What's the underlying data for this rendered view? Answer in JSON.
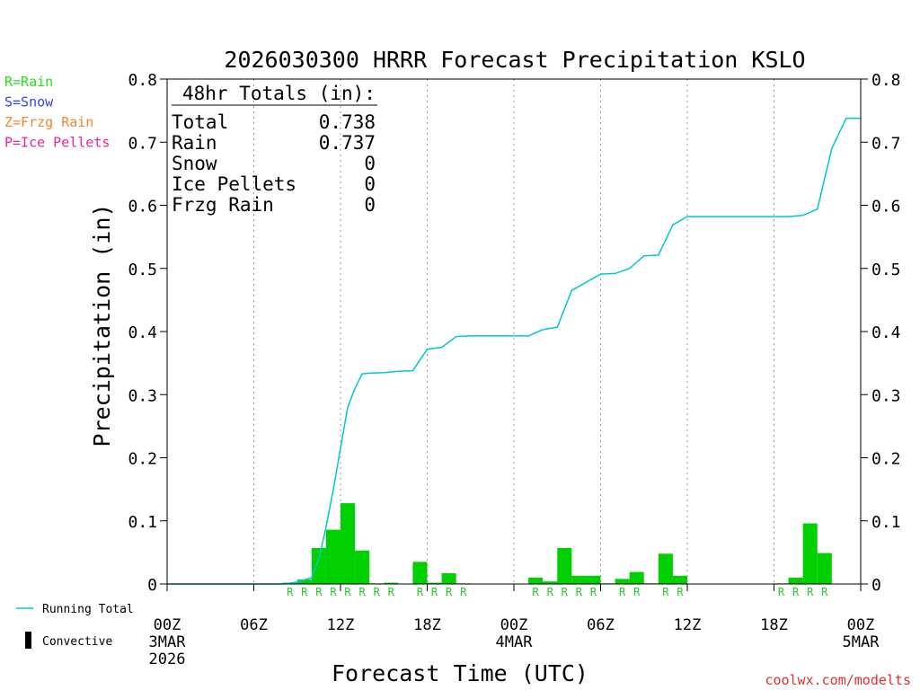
{
  "chart_data": {
    "type": "bar",
    "title": "2026030300 HRRR Forecast Precipitation KSLO",
    "ylabel": "Precipitation (in)",
    "xlabel": "Forecast Time (UTC)",
    "ylim": [
      0,
      0.8
    ],
    "xlim_hours": [
      0,
      48
    ],
    "y_ticks": [
      0,
      0.1,
      0.2,
      0.3,
      0.4,
      0.5,
      0.6,
      0.7,
      0.8
    ],
    "y_tick_labels": [
      "0",
      "0.1",
      "0.2",
      "0.3",
      "0.4",
      "0.5",
      "0.6",
      "0.7",
      "0.8"
    ],
    "x_ticks": [
      {
        "hour": 0,
        "label": "00Z",
        "sub": [
          "3MAR",
          "2026"
        ]
      },
      {
        "hour": 6,
        "label": "06Z",
        "sub": []
      },
      {
        "hour": 12,
        "label": "12Z",
        "sub": []
      },
      {
        "hour": 18,
        "label": "18Z",
        "sub": []
      },
      {
        "hour": 24,
        "label": "00Z",
        "sub": [
          "4MAR"
        ]
      },
      {
        "hour": 30,
        "label": "06Z",
        "sub": []
      },
      {
        "hour": 36,
        "label": "12Z",
        "sub": []
      },
      {
        "hour": 42,
        "label": "18Z",
        "sub": []
      },
      {
        "hour": 48,
        "label": "00Z",
        "sub": [
          "5MAR"
        ]
      }
    ],
    "grid": "vertical dotted lines every 6 hours",
    "legend_top_left": [
      {
        "text": "R=Rain",
        "color": "#22dd22"
      },
      {
        "text": "S=Snow",
        "color": "#3344ee"
      },
      {
        "text": "Z=Frzg Rain",
        "color": "#ee8833"
      },
      {
        "text": "P=Ice Pellets",
        "color": "#ee2299"
      }
    ],
    "legend_bottom_left": [
      {
        "text": "Running Total",
        "color": "#00c8d2"
      },
      {
        "text": "Convective",
        "color": "#000000"
      }
    ],
    "totals": {
      "header": "48hr Totals (in):",
      "rows": [
        {
          "label": "Total",
          "value": "0.738"
        },
        {
          "label": "Rain",
          "value": "0.737"
        },
        {
          "label": "Snow",
          "value": "0"
        },
        {
          "label": "Ice Pellets",
          "value": "0"
        },
        {
          "label": "Frzg Rain",
          "value": "0"
        }
      ]
    },
    "hourly_bars": {
      "name": "Rain",
      "color": "#00d000",
      "hour": [
        9,
        10,
        11,
        12,
        13,
        14,
        15,
        16,
        17,
        18,
        19,
        20,
        21,
        26,
        27,
        28,
        29,
        30,
        31,
        32,
        33,
        34,
        35,
        36,
        37,
        43,
        44,
        45,
        46
      ],
      "values": [
        0.002,
        0.007,
        0.057,
        0.086,
        0.128,
        0.053,
        0.001,
        0.002,
        0.0,
        0.035,
        0.002,
        0.017,
        0.001,
        0.01,
        0.004,
        0.057,
        0.013,
        0.013,
        0.001,
        0.008,
        0.019,
        0.001,
        0.048,
        0.013,
        0.0,
        0.001,
        0.01,
        0.096,
        0.049
      ]
    },
    "rain_markers": {
      "text": "R",
      "hours": [
        9,
        10,
        11,
        12,
        13,
        14,
        15,
        16,
        18,
        19,
        20,
        21,
        26,
        27,
        28,
        29,
        30,
        32,
        33,
        35,
        36,
        43,
        44,
        45,
        46
      ]
    },
    "running_total": {
      "name": "Running Total",
      "color": "#00c8d2",
      "x": [
        0,
        8,
        9,
        10,
        10.5,
        11,
        11.5,
        12,
        12.5,
        13,
        13.5,
        14,
        15,
        16,
        17,
        18,
        19,
        20,
        21,
        22,
        23,
        24,
        25,
        26,
        27,
        28,
        29,
        30,
        31,
        32,
        33,
        34,
        35,
        36,
        37,
        38,
        39,
        40,
        41,
        42,
        43,
        44,
        45,
        46,
        47,
        48
      ],
      "y": [
        0,
        0,
        0.003,
        0.01,
        0.04,
        0.09,
        0.15,
        0.215,
        0.28,
        0.31,
        0.333,
        0.334,
        0.335,
        0.337,
        0.338,
        0.372,
        0.375,
        0.392,
        0.393,
        0.393,
        0.393,
        0.393,
        0.393,
        0.403,
        0.407,
        0.465,
        0.478,
        0.491,
        0.492,
        0.5,
        0.52,
        0.521,
        0.569,
        0.582,
        0.582,
        0.582,
        0.582,
        0.582,
        0.582,
        0.582,
        0.582,
        0.584,
        0.594,
        0.69,
        0.738,
        0.738
      ]
    },
    "credit": "coolwx.com/modelts"
  }
}
